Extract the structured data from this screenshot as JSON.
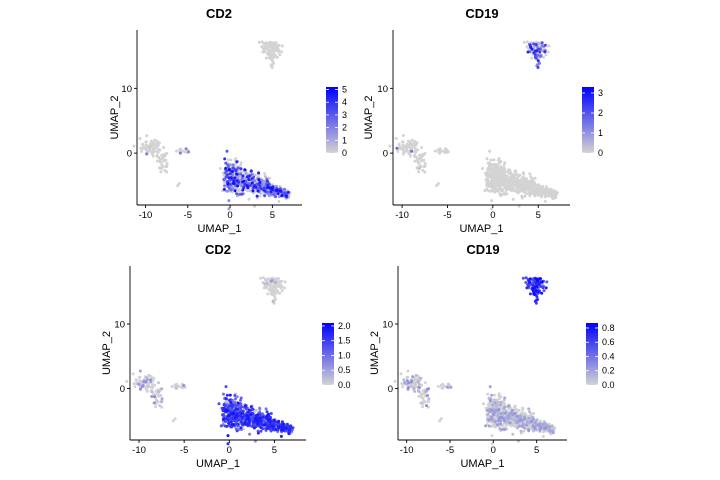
{
  "chart_data": [
    {
      "type": "scatter",
      "title": "CD2",
      "xlabel": "UMAP_1",
      "ylabel": "UMAP_2",
      "xlim": [
        -11,
        8.5
      ],
      "ylim": [
        -8,
        19
      ],
      "xticks": [
        -10,
        -5,
        0,
        5
      ],
      "yticks": [
        0,
        10
      ],
      "color_scale": {
        "low": "#d3d3d3",
        "high": "#0000ff",
        "min": 0,
        "max": 5.2,
        "ticks": [
          5,
          4,
          3,
          2,
          1,
          0
        ]
      },
      "expression_in": "main_cluster"
    },
    {
      "type": "scatter",
      "title": "CD19",
      "xlabel": "UMAP_1",
      "ylabel": "UMAP_2",
      "xlim": [
        -11,
        8.5
      ],
      "ylim": [
        -8,
        19
      ],
      "xticks": [
        -10,
        -5,
        0,
        5
      ],
      "yticks": [
        0,
        10
      ],
      "color_scale": {
        "low": "#d3d3d3",
        "high": "#0000ff",
        "min": 0,
        "max": 3.3,
        "ticks": [
          3,
          2,
          1,
          0
        ]
      },
      "expression_in": "top_cluster"
    },
    {
      "type": "scatter",
      "title": "CD2",
      "xlabel": "UMAP_1",
      "ylabel": "UMAP_2",
      "xlim": [
        -11,
        8.5
      ],
      "ylim": [
        -8,
        19
      ],
      "xticks": [
        -10,
        -5,
        0,
        5
      ],
      "yticks": [
        0,
        10
      ],
      "color_scale": {
        "low": "#d3d3d3",
        "high": "#0000ff",
        "min": 0,
        "max": 2.1,
        "ticks": [
          "2.0",
          "1.5",
          "1.0",
          "0.5",
          "0.0"
        ]
      },
      "expression_in": "main_cluster_dense"
    },
    {
      "type": "scatter",
      "title": "CD19",
      "xlabel": "UMAP_1",
      "ylabel": "UMAP_2",
      "xlim": [
        -11,
        8.5
      ],
      "ylim": [
        -8,
        19
      ],
      "xticks": [
        -10,
        -5,
        0,
        5
      ],
      "yticks": [
        0,
        10
      ],
      "color_scale": {
        "low": "#d3d3d3",
        "high": "#0000ff",
        "min": 0,
        "max": 0.87,
        "ticks": [
          "0.8",
          "0.6",
          "0.4",
          "0.2",
          "0.0"
        ]
      },
      "expression_in": "top_cluster_dense"
    }
  ]
}
